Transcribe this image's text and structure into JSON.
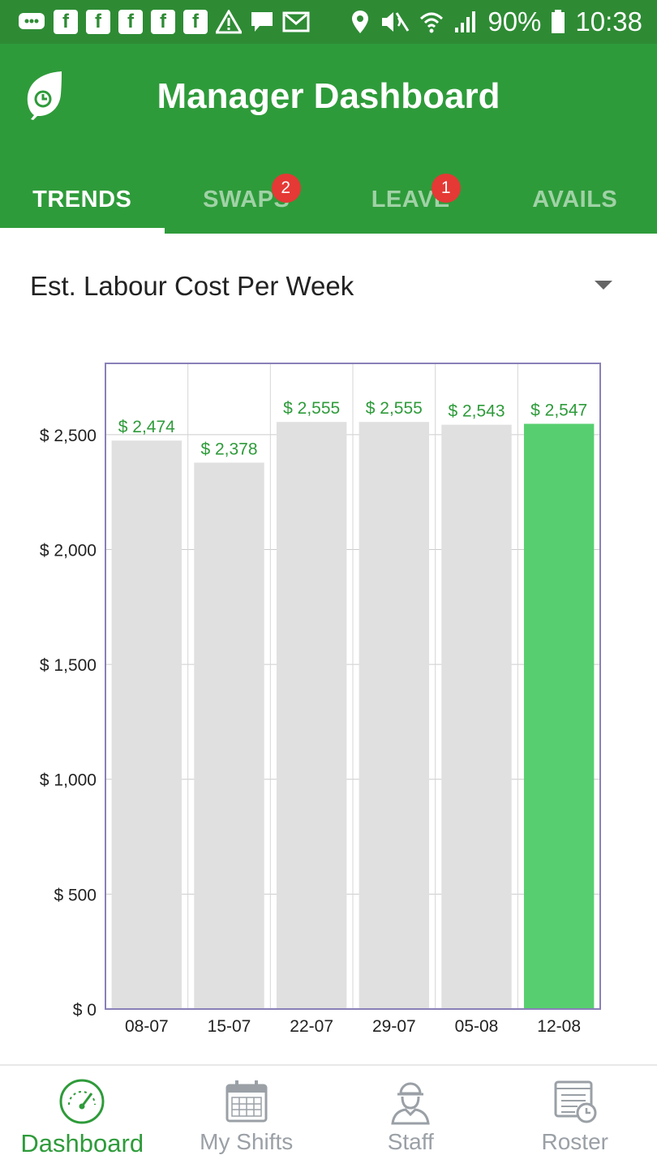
{
  "status_bar": {
    "battery": "90%",
    "time": "10:38",
    "left_icons": [
      "message-icon",
      "facebook-icon",
      "facebook-icon",
      "facebook-icon",
      "facebook-icon",
      "facebook-icon",
      "warning-icon",
      "chat-icon",
      "gmail-icon"
    ],
    "right_icons": [
      "location-icon",
      "mute-icon",
      "wifi-icon",
      "signal-icon",
      "battery-icon"
    ],
    "fb_glyph": "f"
  },
  "header": {
    "title": "Manager Dashboard",
    "logo_icon": "leaf-clock-icon",
    "background": "#2e9b3a"
  },
  "tabs": [
    {
      "label": "TRENDS",
      "active": true,
      "badge": ""
    },
    {
      "label": "SWAPS",
      "active": false,
      "badge": "2"
    },
    {
      "label": "LEAVE",
      "active": false,
      "badge": "1"
    },
    {
      "label": "AVAILS",
      "active": false,
      "badge": ""
    }
  ],
  "metric_selector": {
    "label": "Est. Labour Cost Per Week",
    "icon": "dropdown-arrow-icon"
  },
  "chart_data": {
    "type": "bar",
    "title": "",
    "xlabel": "",
    "ylabel": "",
    "categories": [
      "08-07",
      "15-07",
      "22-07",
      "29-07",
      "05-08",
      "12-08"
    ],
    "values": [
      2474,
      2378,
      2555,
      2555,
      2543,
      2547
    ],
    "value_labels": [
      "$ 2,474",
      "$ 2,378",
      "$ 2,555",
      "$ 2,555",
      "$ 2,543",
      "$ 2,547"
    ],
    "ylim": [
      0,
      2810
    ],
    "yticks": [
      0,
      500,
      1000,
      1500,
      2000,
      2500
    ],
    "ytick_labels": [
      "$ 0",
      "$ 500",
      "$ 1,000",
      "$ 1,500",
      "$ 2,000",
      "$ 2,500"
    ],
    "grid": true,
    "highlight_index": 5,
    "colors": {
      "bar": "#e0e0e0",
      "highlight": "#57cf70",
      "value_label": "#2e9b3a",
      "frame": "#8a80b8",
      "grid": "#cccccc"
    }
  },
  "bottom_nav": [
    {
      "label": "Dashboard",
      "icon": "speedometer-icon",
      "active": true
    },
    {
      "label": "My Shifts",
      "icon": "calendar-icon",
      "active": false
    },
    {
      "label": "Staff",
      "icon": "worker-icon",
      "active": false
    },
    {
      "label": "Roster",
      "icon": "roster-clock-icon",
      "active": false
    }
  ]
}
